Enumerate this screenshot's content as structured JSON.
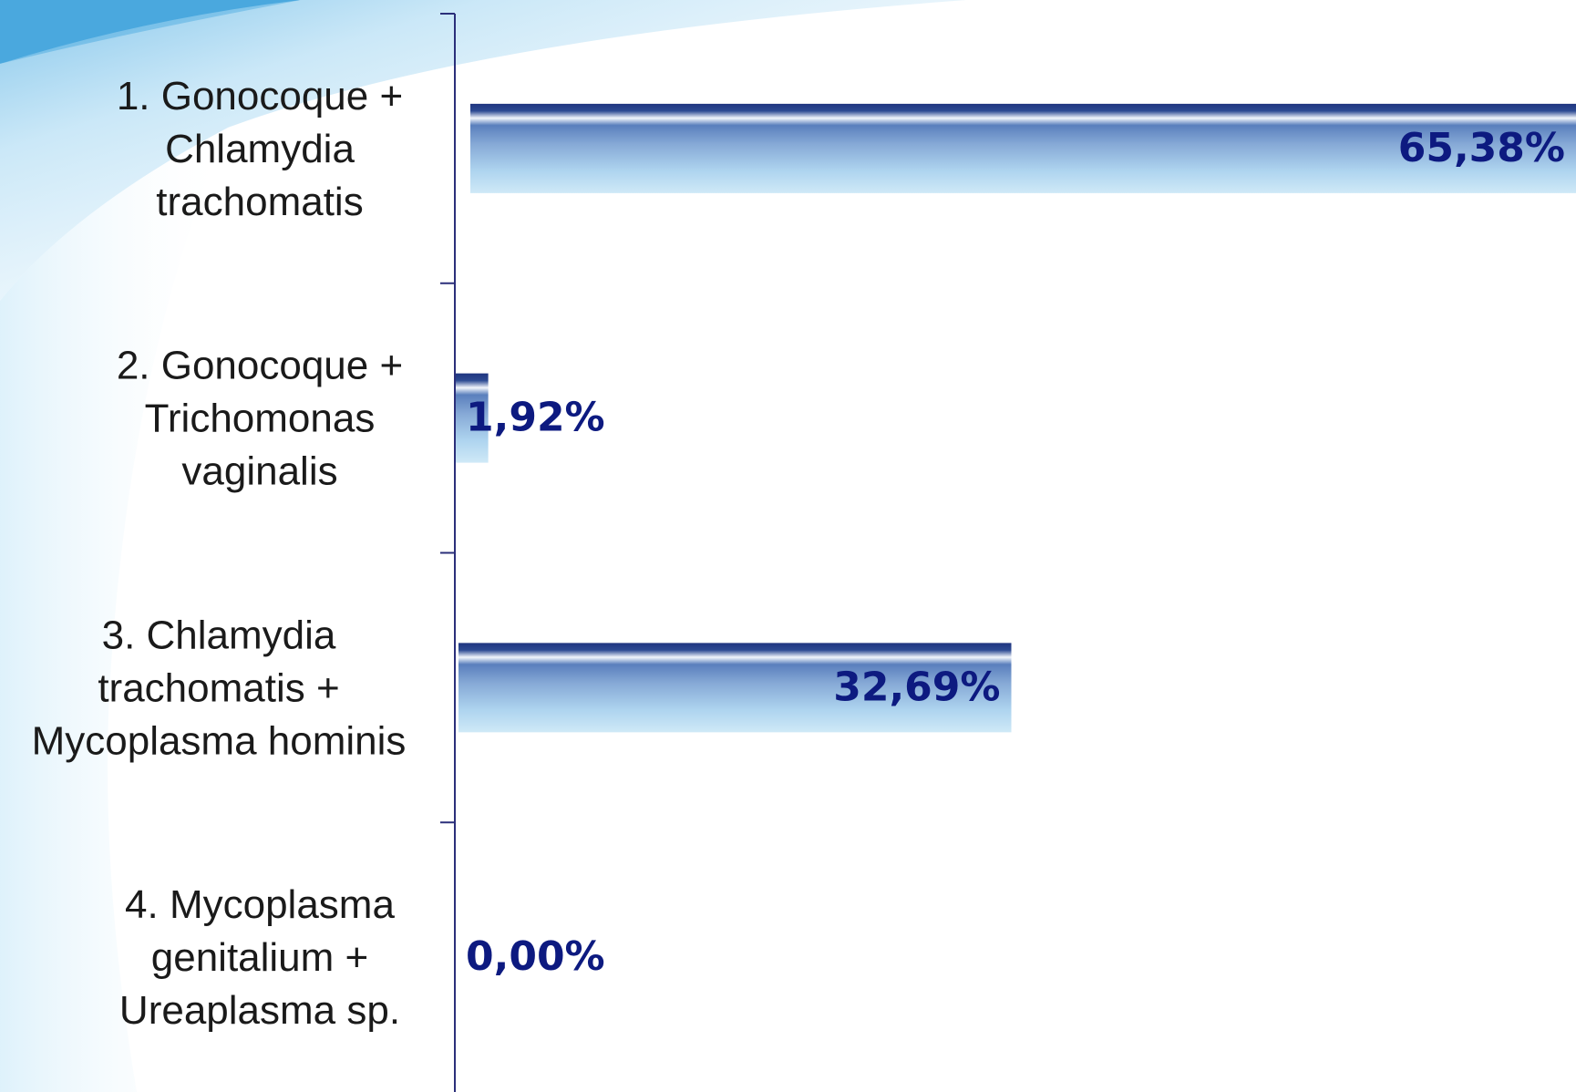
{
  "chart_data": {
    "type": "bar",
    "orientation": "horizontal",
    "categories": [
      "1. Gonocoque + Chlamydia trachomatis",
      "2. Gonocoque + Trichomonas vaginalis",
      "3. Chlamydia trachomatis + Mycoplasma hominis",
      "4. Mycoplasma genitalium + Ureaplasma sp."
    ],
    "category_lines": [
      [
        "1. Gonocoque +",
        "Chlamydia",
        "trachomatis"
      ],
      [
        "2. Gonocoque +",
        "Trichomonas",
        "vaginalis"
      ],
      [
        "3. Chlamydia",
        "trachomatis +",
        "Mycoplasma hominis"
      ],
      [
        "4. Mycoplasma",
        "genitalium +",
        "Ureaplasma sp."
      ]
    ],
    "values": [
      65.38,
      1.92,
      32.69,
      0.0
    ],
    "value_labels": [
      "65,38%",
      "1,92%",
      "32,69%",
      "0,00%"
    ],
    "xlim": [
      0,
      65.38
    ],
    "grid": false,
    "legend": "none"
  },
  "colors": {
    "axis": "#2b2f7a",
    "bar_top": "#1f3580",
    "bar_mid": "#6f95c8",
    "bar_bottom": "#c4e4f4",
    "value_text": "#0d1a80",
    "background_swoosh": "#7cc4ea"
  }
}
